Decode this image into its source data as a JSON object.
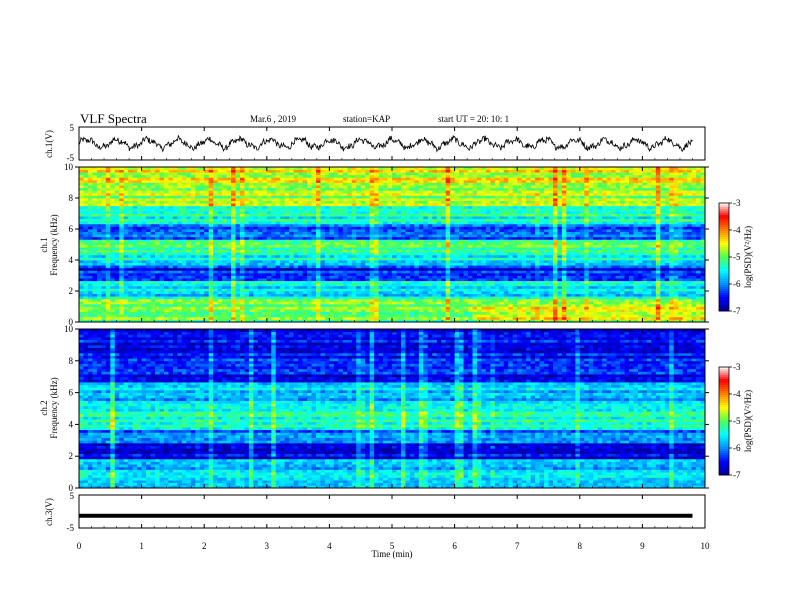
{
  "header": {
    "title": "VLF Spectra",
    "date": "Mar.6 , 2019",
    "station": "station=KAP",
    "start": "start UT = 20: 10: 1"
  },
  "chart_data": [
    {
      "type": "line",
      "ylabel": "ch.1(V)",
      "ylim": [
        -5,
        5
      ],
      "yticks": [
        "5",
        "-5"
      ],
      "xlim": [
        0,
        10
      ],
      "series": [
        {
          "values_description_free": true,
          "x_range": [
            0,
            9.8
          ],
          "mean": 0.0,
          "amplitude_approx": 2.5
        }
      ]
    },
    {
      "type": "heatmap",
      "label_channel": "ch.1",
      "ylabel": "Frequency (kHz)",
      "ylim": [
        0,
        10
      ],
      "yticks": [
        "0",
        "2",
        "4",
        "6",
        "8",
        "10"
      ],
      "xlim": [
        0,
        10
      ],
      "colorbar": {
        "label": "log(PSD)(V²/Hz)",
        "ticks": [
          "-3",
          "-4",
          "-5",
          "-6",
          "-7"
        ],
        "range": [
          -7,
          -3
        ]
      },
      "colormap": [
        "#000090",
        "#0000ff",
        "#0090ff",
        "#00ffff",
        "#50ff50",
        "#ffff00",
        "#ff8000",
        "#ff0000",
        "#ffffff"
      ]
    },
    {
      "type": "heatmap",
      "label_channel": "ch.2",
      "ylabel": "Frequency (kHz)",
      "ylim": [
        0,
        10
      ],
      "yticks": [
        "0",
        "2",
        "4",
        "6",
        "8",
        "10"
      ],
      "xlim": [
        0,
        10
      ],
      "colorbar": {
        "label": "log(PSD)(V²/Hz)",
        "ticks": [
          "-3",
          "-4",
          "-5",
          "-6",
          "-7"
        ],
        "range": [
          -7,
          -3
        ]
      },
      "colormap": [
        "#000090",
        "#0000ff",
        "#0090ff",
        "#00ffff",
        "#50ff50",
        "#ffff00",
        "#ff8000",
        "#ff0000",
        "#ffffff"
      ]
    },
    {
      "type": "line",
      "ylabel": "ch.3(V)",
      "ylim": [
        -5,
        5
      ],
      "yticks": [
        "5",
        "-5"
      ],
      "xlim": [
        0,
        10
      ],
      "series": [
        {
          "constant_value": -1.3,
          "x_range": [
            0,
            9.8
          ]
        }
      ]
    }
  ],
  "xaxis": {
    "label": "Time (min)",
    "ticks": [
      "0",
      "1",
      "2",
      "3",
      "4",
      "5",
      "6",
      "7",
      "8",
      "9",
      "10"
    ]
  }
}
